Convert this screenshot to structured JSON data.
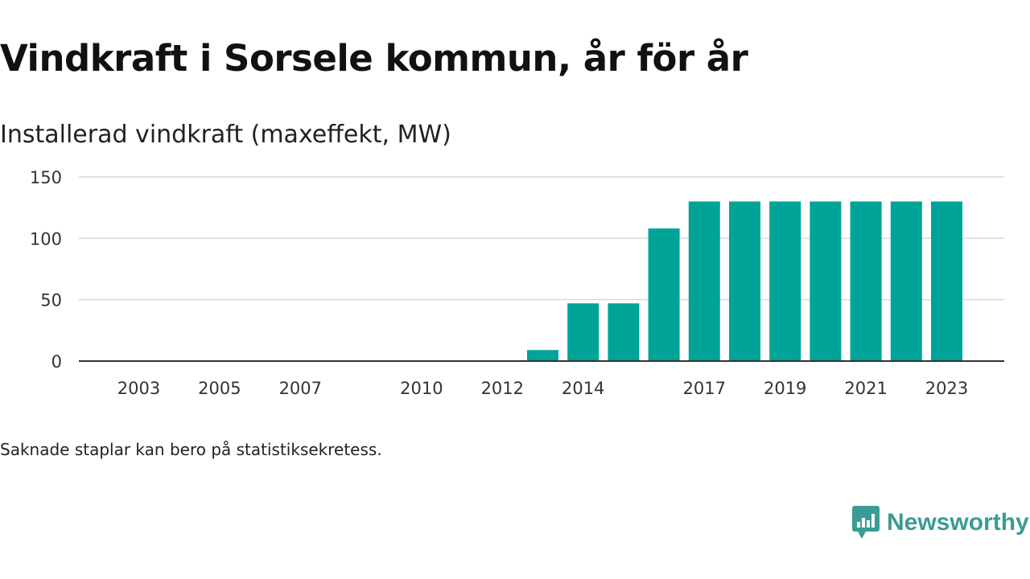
{
  "title": "Vindkraft i Sorsele kommun, år för år",
  "subtitle": "Installerad vindkraft (maxeffekt, MW)",
  "footnote": "Saknade staplar kan bero på statistiksekretess.",
  "brand": {
    "name": "Newsworthy",
    "icon": "newsworthy-logo-icon",
    "color": "#3a9c94"
  },
  "colors": {
    "bar": "#00a398",
    "grid": "#d9d9d9",
    "axis": "#333333"
  },
  "chart_data": {
    "type": "bar",
    "categories": [
      "2003",
      "2004",
      "2005",
      "2006",
      "2007",
      "2008",
      "2009",
      "2010",
      "2011",
      "2012",
      "2013",
      "2014",
      "2015",
      "2016",
      "2017",
      "2018",
      "2019",
      "2020",
      "2021",
      "2022",
      "2023"
    ],
    "values": [
      0,
      0,
      0,
      0,
      0,
      0,
      0,
      0,
      0,
      0,
      9,
      47,
      47,
      108,
      130,
      130,
      130,
      130,
      130,
      130,
      130
    ],
    "x_tick_labels": [
      "2003",
      "2005",
      "2007",
      "2010",
      "2012",
      "2014",
      "2017",
      "2019",
      "2021",
      "2023"
    ],
    "y_ticks": [
      0,
      50,
      100,
      150
    ],
    "ylim": [
      0,
      150
    ],
    "ylabel": "Installerad vindkraft (maxeffekt, MW)",
    "xlabel": "",
    "grid": true,
    "legend": "none"
  }
}
